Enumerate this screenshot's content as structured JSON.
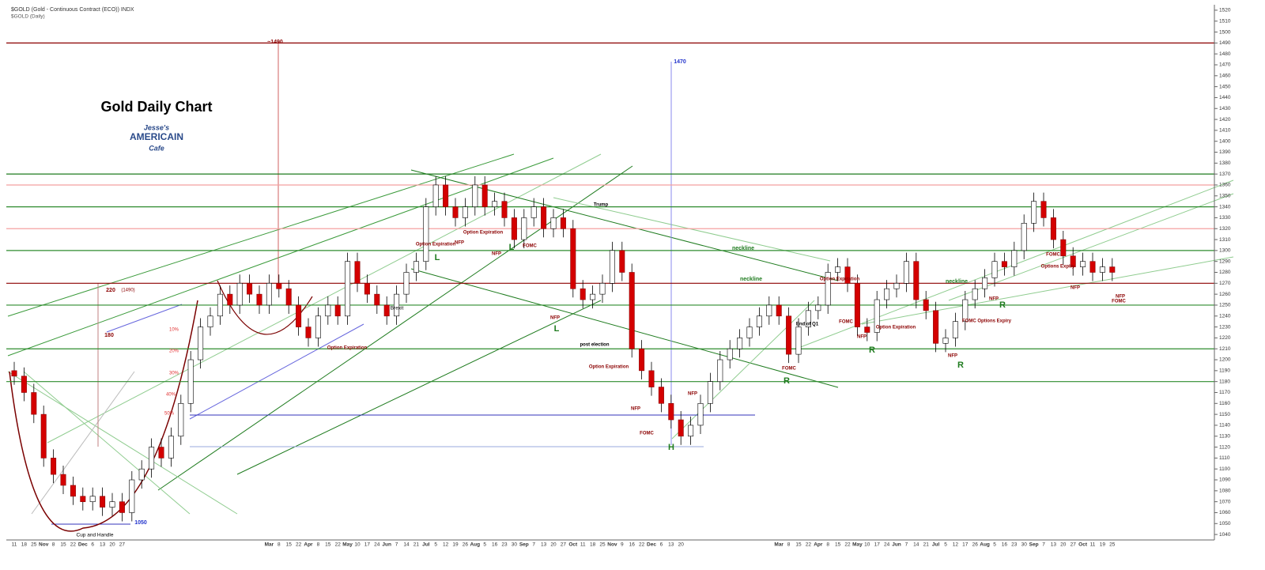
{
  "chart_data": {
    "type": "candlestick",
    "title": "Gold Daily Chart",
    "subtitle": "$GOLD (Gold - Continuous Contract (ECO)) INDX",
    "subtitle2": "$GOLD (Daily)",
    "logo": [
      "Jesse's",
      "AMERICAIN",
      "Cafe"
    ],
    "categories": [
      "11",
      "18",
      "25",
      "Nov",
      "8",
      "15",
      "22",
      "Dec",
      "6",
      "13",
      "20",
      "27",
      null,
      null,
      null,
      null,
      null,
      null,
      null,
      null,
      null,
      null,
      null,
      null,
      null,
      null,
      "Mar",
      "8",
      "15",
      "22",
      "Apr",
      "8",
      "15",
      "22",
      "May",
      "10",
      "17",
      "24",
      "Jun",
      "7",
      "14",
      "21",
      "Jul",
      "5",
      "12",
      "19",
      "26",
      "Aug",
      "5",
      "16",
      "23",
      "30",
      "Sep",
      "7",
      "13",
      "20",
      "27",
      "Oct",
      "11",
      "18",
      "25",
      "Nov",
      "9",
      "16",
      "22",
      "Dec",
      "6",
      "13",
      "20",
      null,
      null,
      null,
      null,
      null,
      null,
      null,
      null,
      null,
      "Mar",
      "8",
      "15",
      "22",
      "Apr",
      "8",
      "15",
      "22",
      "May",
      "10",
      "17",
      "24",
      "Jun",
      "7",
      "14",
      "21",
      "Jul",
      "5",
      "12",
      "17",
      "26",
      "Aug",
      "5",
      "16",
      "23",
      "30",
      "Sep",
      "7",
      "13",
      "20",
      "27",
      "Oct",
      "11",
      "19",
      "25"
    ],
    "open": [
      1190,
      1185,
      1170,
      1150,
      1110,
      1095,
      1085,
      1075,
      1070,
      1075,
      1065,
      1070,
      1060,
      1090,
      1100,
      1120,
      1110,
      1130,
      1160,
      1200,
      1230,
      1240,
      1260,
      1250,
      1270,
      1260,
      1250,
      1270,
      1265,
      1250,
      1230,
      1220,
      1240,
      1250,
      1240,
      1290,
      1270,
      1260,
      1250,
      1240,
      1260,
      1280,
      1290,
      1340,
      1360,
      1340,
      1330,
      1340,
      1360,
      1340,
      1345,
      1330,
      1310,
      1330,
      1340,
      1320,
      1330,
      1320,
      1265,
      1255,
      1260,
      1270,
      1300,
      1280,
      1210,
      1190,
      1175,
      1160,
      1145,
      1130,
      1140,
      1160,
      1180,
      1200,
      1210,
      1220,
      1230,
      1240,
      1250,
      1240,
      1205,
      1230,
      1245,
      1250,
      1280,
      1285,
      1270,
      1230,
      1225,
      1255,
      1265,
      1270,
      1290,
      1255,
      1245,
      1215,
      1220,
      1235,
      1255,
      1265,
      1275,
      1290,
      1285,
      1300,
      1325,
      1345,
      1330,
      1310,
      1295,
      1285,
      1290,
      1280,
      1285
    ],
    "high": [
      1198,
      1193,
      1178,
      1158,
      1118,
      1103,
      1093,
      1083,
      1083,
      1083,
      1078,
      1078,
      1098,
      1108,
      1128,
      1128,
      1138,
      1168,
      1208,
      1238,
      1248,
      1268,
      1268,
      1278,
      1278,
      1268,
      1278,
      1278,
      1273,
      1258,
      1238,
      1248,
      1258,
      1258,
      1298,
      1298,
      1278,
      1268,
      1258,
      1268,
      1288,
      1298,
      1348,
      1368,
      1368,
      1348,
      1348,
      1368,
      1368,
      1353,
      1353,
      1338,
      1338,
      1348,
      1348,
      1338,
      1338,
      1328,
      1273,
      1268,
      1278,
      1308,
      1308,
      1288,
      1218,
      1198,
      1183,
      1168,
      1153,
      1148,
      1168,
      1188,
      1208,
      1218,
      1228,
      1238,
      1248,
      1258,
      1258,
      1248,
      1238,
      1253,
      1258,
      1288,
      1293,
      1293,
      1278,
      1238,
      1263,
      1273,
      1278,
      1298,
      1298,
      1263,
      1253,
      1228,
      1243,
      1263,
      1273,
      1283,
      1298,
      1298,
      1308,
      1333,
      1353,
      1353,
      1338,
      1318,
      1303,
      1298,
      1298,
      1293,
      1293
    ],
    "low": [
      1177,
      1162,
      1142,
      1102,
      1087,
      1077,
      1067,
      1062,
      1062,
      1057,
      1057,
      1052,
      1052,
      1082,
      1092,
      1102,
      1102,
      1122,
      1152,
      1192,
      1222,
      1232,
      1242,
      1242,
      1252,
      1242,
      1242,
      1257,
      1242,
      1222,
      1212,
      1212,
      1232,
      1232,
      1232,
      1262,
      1252,
      1242,
      1232,
      1232,
      1252,
      1272,
      1282,
      1332,
      1332,
      1322,
      1322,
      1332,
      1332,
      1332,
      1322,
      1302,
      1302,
      1322,
      1312,
      1312,
      1312,
      1257,
      1247,
      1247,
      1252,
      1262,
      1272,
      1202,
      1182,
      1167,
      1152,
      1137,
      1122,
      1122,
      1132,
      1152,
      1172,
      1192,
      1202,
      1212,
      1222,
      1232,
      1232,
      1197,
      1197,
      1222,
      1237,
      1242,
      1272,
      1262,
      1222,
      1217,
      1217,
      1247,
      1257,
      1262,
      1247,
      1237,
      1207,
      1207,
      1212,
      1227,
      1247,
      1257,
      1267,
      1277,
      1277,
      1292,
      1317,
      1322,
      1302,
      1287,
      1277,
      1277,
      1272,
      1272,
      1272
    ],
    "close": [
      1185,
      1170,
      1150,
      1110,
      1095,
      1085,
      1075,
      1070,
      1075,
      1065,
      1070,
      1060,
      1090,
      1100,
      1120,
      1110,
      1130,
      1160,
      1200,
      1230,
      1240,
      1260,
      1250,
      1270,
      1260,
      1250,
      1270,
      1265,
      1250,
      1230,
      1220,
      1240,
      1250,
      1240,
      1290,
      1270,
      1260,
      1250,
      1240,
      1260,
      1280,
      1290,
      1340,
      1360,
      1340,
      1330,
      1340,
      1360,
      1340,
      1345,
      1330,
      1310,
      1330,
      1340,
      1320,
      1330,
      1320,
      1265,
      1255,
      1260,
      1270,
      1300,
      1280,
      1210,
      1190,
      1175,
      1160,
      1145,
      1130,
      1140,
      1160,
      1180,
      1200,
      1210,
      1220,
      1230,
      1240,
      1250,
      1240,
      1205,
      1230,
      1245,
      1250,
      1280,
      1285,
      1270,
      1230,
      1225,
      1255,
      1265,
      1270,
      1290,
      1255,
      1245,
      1215,
      1220,
      1235,
      1255,
      1265,
      1275,
      1290,
      1285,
      1300,
      1325,
      1345,
      1330,
      1310,
      1295,
      1285,
      1290,
      1280,
      1285,
      1280
    ],
    "up_color": "#ffffff",
    "down_color": "#d40000",
    "ylim": [
      1035,
      1525
    ],
    "yticks": [
      1040,
      1050,
      1060,
      1070,
      1080,
      1090,
      1100,
      1110,
      1120,
      1130,
      1140,
      1150,
      1160,
      1170,
      1180,
      1190,
      1200,
      1210,
      1220,
      1230,
      1240,
      1250,
      1260,
      1270,
      1280,
      1290,
      1300,
      1310,
      1320,
      1330,
      1340,
      1350,
      1360,
      1370,
      1380,
      1390,
      1400,
      1410,
      1420,
      1430,
      1440,
      1450,
      1460,
      1470,
      1480,
      1490,
      1500,
      1510,
      1520
    ],
    "levels": [
      {
        "value": 1490,
        "color": "#8b0000"
      },
      {
        "value": 1370,
        "color": "#1e7b1e"
      },
      {
        "value": 1360,
        "color": "#f4a0a0"
      },
      {
        "value": 1340,
        "color": "#2e8b2e"
      },
      {
        "value": 1320,
        "color": "#f4a0a0"
      },
      {
        "value": 1300,
        "color": "#2e8b2e"
      },
      {
        "value": 1270,
        "color": "#8b0000"
      },
      {
        "value": 1250,
        "color": "#2e8b2e"
      },
      {
        "value": 1210,
        "color": "#2e8b2e"
      },
      {
        "value": 1180,
        "color": "#2e8b2e"
      }
    ],
    "annotations": [
      "~1490",
      "1470",
      "220",
      "(1490)",
      "180",
      "10%",
      "20%",
      "30%",
      "40%",
      "50%",
      "1050",
      "Cup and Handle",
      "Brexit",
      "Option Expiration",
      "NFP",
      "Option Expiration",
      "NFP",
      "L",
      "L",
      "FOMC",
      "Trump",
      "NFP",
      "L",
      "post election",
      "Option Expiration",
      "NFP",
      "FOMC",
      "H",
      "NFP",
      "Option Expiration",
      "neckline",
      "neckline",
      "neckline",
      "End of Q1",
      "Option Expiration",
      "FOMC",
      "FOMC",
      "R",
      "NFP",
      "R",
      "Option Expiration",
      "NFP",
      "R",
      "R",
      "NFP",
      "FOMC Options Expiry",
      "FOMC",
      "Options Expiry",
      "NFP",
      "NFP",
      "FOMC"
    ]
  }
}
